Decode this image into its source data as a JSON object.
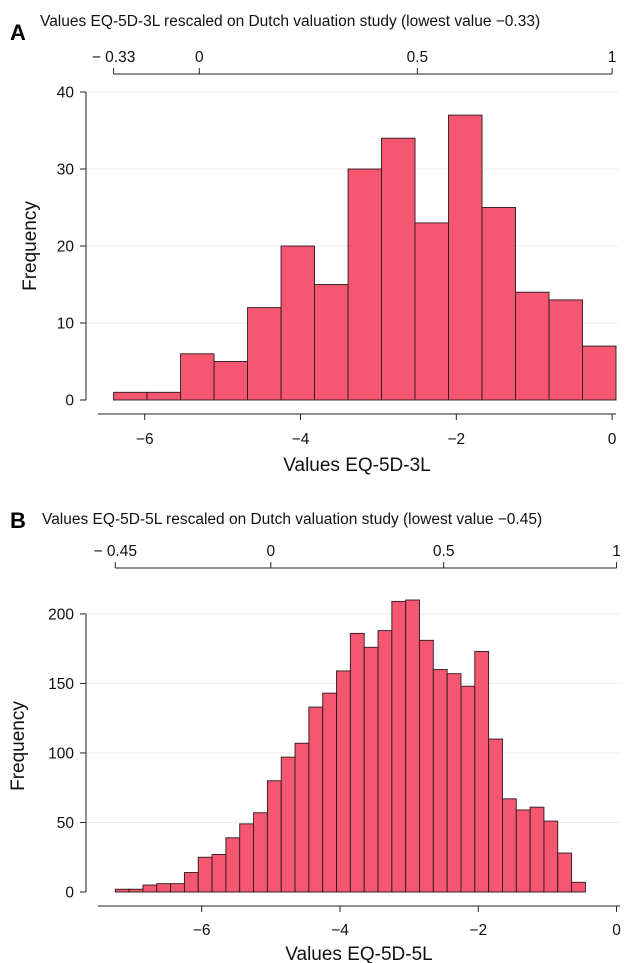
{
  "colors": {
    "bar_fill": "#f4576f",
    "bar_stroke": "#2a1a1e",
    "axis": "#222222",
    "grid": "#ececec"
  },
  "chart_data": [
    {
      "panel_label": "A",
      "type": "bar",
      "top_title": "Values EQ-5D-3L rescaled on Dutch valuation study (lowest value −0.33)",
      "top_ticks": [
        "− 0.33",
        "0",
        "0.5",
        "1"
      ],
      "top_tick_values": [
        -6.4,
        -5.3,
        -2.5,
        0
      ],
      "xlabel": "Values EQ-5D-3L",
      "ylabel": "Frequency",
      "xlim": [
        -6.6,
        0.05
      ],
      "ylim": [
        0,
        40
      ],
      "xticks": [
        -6,
        -4,
        -2,
        0
      ],
      "yticks": [
        0,
        10,
        20,
        30,
        40
      ],
      "bin_start": -6.4,
      "bin_width": 0.43,
      "values": [
        1,
        1,
        6,
        5,
        12,
        20,
        15,
        30,
        34,
        23,
        37,
        25,
        14,
        13,
        7
      ],
      "grid": true
    },
    {
      "panel_label": "B",
      "type": "bar",
      "top_title": "Values EQ-5D-5L rescaled on Dutch valuation study (lowest value −0.45)",
      "top_ticks": [
        "− 0.45",
        "0",
        "0.5",
        "1"
      ],
      "top_tick_values": [
        -7.25,
        -5.0,
        -2.5,
        0
      ],
      "xlabel": "Values EQ-5D-5L",
      "ylabel": "Frequency",
      "xlim": [
        -7.5,
        0.05
      ],
      "ylim": [
        0,
        210
      ],
      "xticks": [
        -6,
        -4,
        -2,
        0
      ],
      "yticks": [
        0,
        50,
        100,
        150,
        200
      ],
      "bin_start": -7.25,
      "bin_width": 0.2,
      "values": [
        2,
        2,
        5,
        6,
        6,
        14,
        25,
        27,
        39,
        49,
        57,
        80,
        97,
        107,
        133,
        143,
        159,
        186,
        176,
        188,
        209,
        210,
        181,
        160,
        157,
        148,
        173,
        110,
        67,
        59,
        61,
        51,
        28,
        7
      ],
      "grid": true
    }
  ]
}
